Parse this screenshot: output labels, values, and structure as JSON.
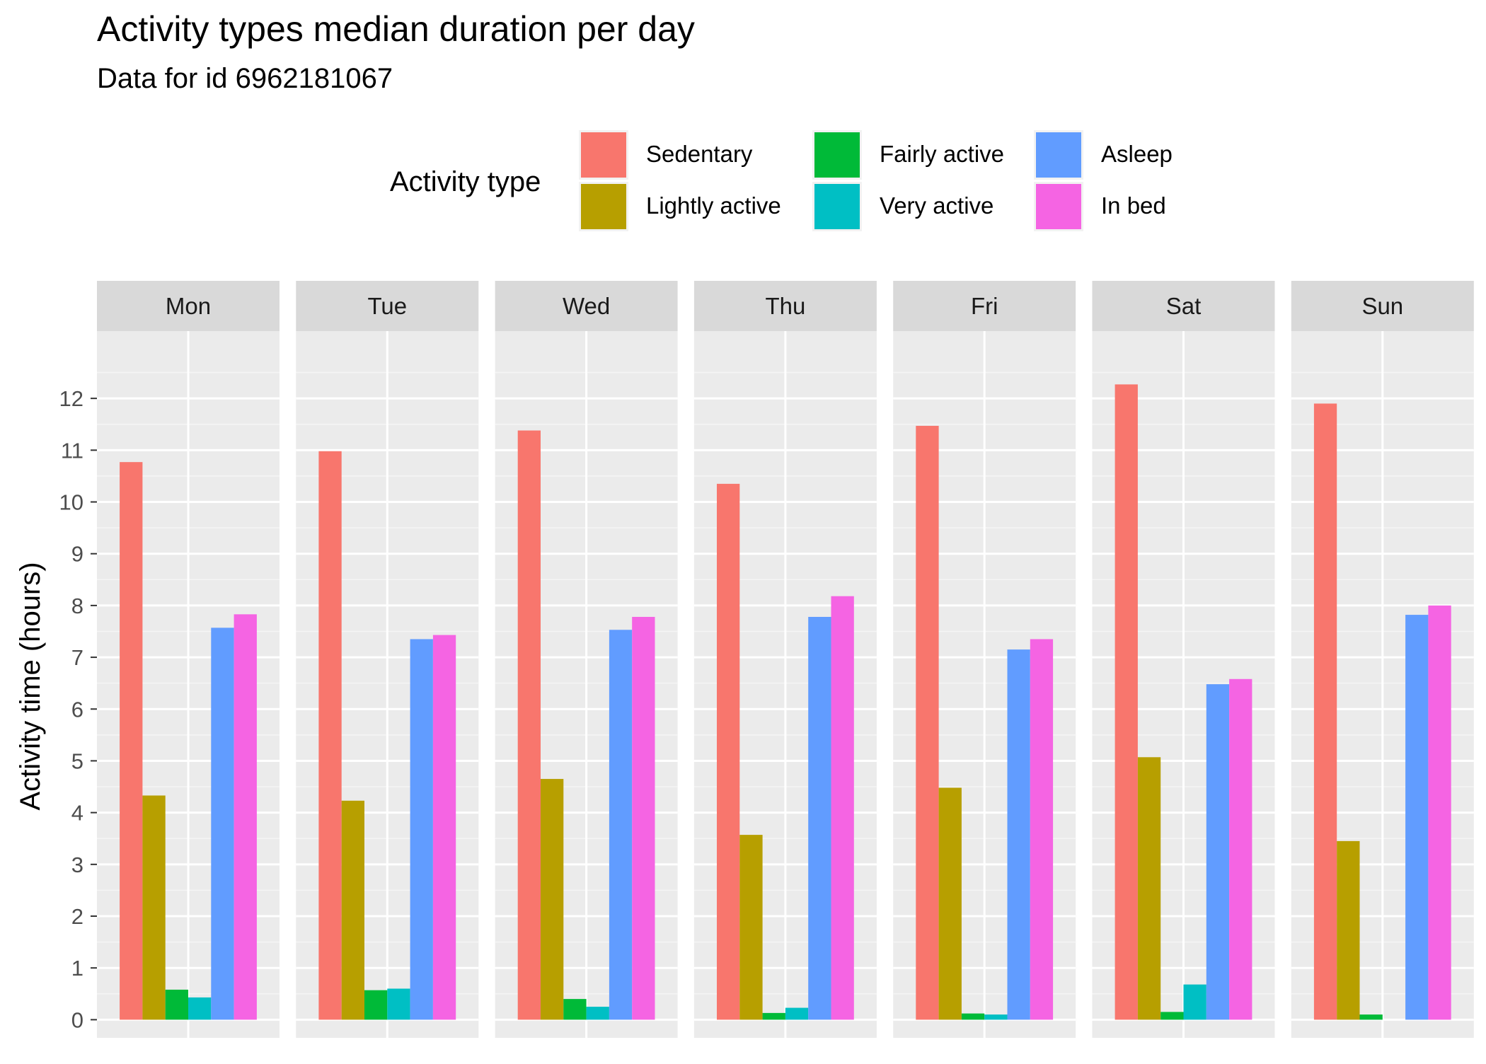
{
  "chart_data": {
    "type": "bar",
    "title": "Activity types median duration per day",
    "subtitle": "Data for id 6962181067",
    "xlabel": "",
    "ylabel": "Activity time (hours)",
    "ylim": [
      -0.35,
      13.3
    ],
    "y_ticks": [
      "0",
      "1",
      "2",
      "3",
      "4",
      "5",
      "6",
      "7",
      "8",
      "9",
      "10",
      "11",
      "12"
    ],
    "grid": true,
    "legend": {
      "title": "Activity type",
      "position": "top"
    },
    "facets": [
      "Mon",
      "Tue",
      "Wed",
      "Thu",
      "Fri",
      "Sat",
      "Sun"
    ],
    "series": [
      {
        "name": "Sedentary",
        "color": "#F8766D",
        "values": [
          10.77,
          10.98,
          11.38,
          10.35,
          11.47,
          12.27,
          11.9
        ]
      },
      {
        "name": "Lightly active",
        "color": "#B79F00",
        "values": [
          4.33,
          4.23,
          4.65,
          3.57,
          4.48,
          5.07,
          3.45
        ]
      },
      {
        "name": "Fairly active",
        "color": "#00BA38",
        "values": [
          0.58,
          0.57,
          0.4,
          0.13,
          0.12,
          0.15,
          0.1
        ]
      },
      {
        "name": "Very active",
        "color": "#00BFC4",
        "values": [
          0.43,
          0.6,
          0.25,
          0.23,
          0.1,
          0.68,
          0
        ]
      },
      {
        "name": "Asleep",
        "color": "#619CFF",
        "values": [
          7.57,
          7.35,
          7.53,
          7.78,
          7.15,
          6.48,
          7.82
        ]
      },
      {
        "name": "In bed",
        "color": "#F564E3",
        "values": [
          7.83,
          7.43,
          7.78,
          8.18,
          7.35,
          6.58,
          8.0
        ]
      }
    ]
  }
}
